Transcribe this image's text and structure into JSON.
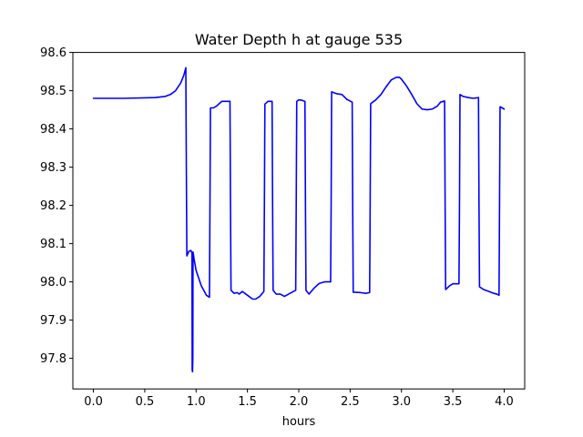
{
  "chart_data": {
    "type": "line",
    "title": "Water Depth h at gauge 535",
    "xlabel": "hours",
    "ylabel": "",
    "xlim": [
      -0.2,
      4.2
    ],
    "ylim": [
      97.72,
      98.6
    ],
    "xticks": [
      0.0,
      0.5,
      1.0,
      1.5,
      2.0,
      2.5,
      3.0,
      3.5,
      4.0
    ],
    "xtick_labels": [
      "0.0",
      "0.5",
      "1.0",
      "1.5",
      "2.0",
      "2.5",
      "3.0",
      "3.5",
      "4.0"
    ],
    "yticks": [
      97.8,
      97.9,
      98.0,
      98.1,
      98.2,
      98.3,
      98.4,
      98.5,
      98.6
    ],
    "ytick_labels": [
      "97.8",
      "97.9",
      "98.0",
      "98.1",
      "98.2",
      "98.3",
      "98.4",
      "98.5",
      "98.6"
    ],
    "grid": false,
    "series": [
      {
        "color": "#0000ff",
        "x": [
          0.0,
          0.3,
          0.6,
          0.7,
          0.75,
          0.8,
          0.85,
          0.88,
          0.9,
          0.905,
          0.91,
          0.93,
          0.95,
          0.96,
          0.962,
          0.965,
          0.968,
          0.97,
          0.975,
          0.98,
          1.0,
          1.05,
          1.1,
          1.13,
          1.135,
          1.14,
          1.17,
          1.2,
          1.25,
          1.3,
          1.33,
          1.335,
          1.34,
          1.37,
          1.4,
          1.42,
          1.45,
          1.5,
          1.55,
          1.58,
          1.62,
          1.66,
          1.665,
          1.67,
          1.7,
          1.73,
          1.74,
          1.745,
          1.75,
          1.78,
          1.82,
          1.86,
          1.9,
          1.95,
          1.97,
          1.975,
          1.98,
          2.0,
          2.03,
          2.06,
          2.065,
          2.07,
          2.1,
          2.15,
          2.2,
          2.25,
          2.3,
          2.31,
          2.315,
          2.32,
          2.37,
          2.42,
          2.47,
          2.52,
          2.525,
          2.53,
          2.6,
          2.65,
          2.69,
          2.695,
          2.7,
          2.75,
          2.8,
          2.85,
          2.9,
          2.95,
          2.98,
          3.0,
          3.05,
          3.1,
          3.15,
          3.2,
          3.25,
          3.3,
          3.35,
          3.38,
          3.42,
          3.425,
          3.43,
          3.47,
          3.5,
          3.55,
          3.56,
          3.565,
          3.57,
          3.6,
          3.65,
          3.7,
          3.75,
          3.755,
          3.76,
          3.8,
          3.85,
          3.9,
          3.93,
          3.95,
          3.955,
          3.96,
          3.98,
          4.0
        ],
        "y": [
          98.48,
          98.48,
          98.482,
          98.485,
          98.49,
          98.5,
          98.52,
          98.54,
          98.56,
          98.3,
          98.068,
          98.08,
          98.082,
          98.075,
          97.77,
          97.765,
          97.8,
          98.078,
          98.07,
          98.06,
          98.03,
          97.99,
          97.965,
          97.96,
          98.2,
          98.455,
          98.455,
          98.46,
          98.472,
          98.472,
          98.472,
          98.2,
          97.978,
          97.97,
          97.972,
          97.968,
          97.975,
          97.965,
          97.955,
          97.955,
          97.962,
          97.975,
          98.2,
          98.465,
          98.472,
          98.472,
          98.472,
          98.2,
          97.978,
          97.968,
          97.968,
          97.962,
          97.968,
          97.975,
          97.978,
          98.2,
          98.472,
          98.476,
          98.475,
          98.472,
          98.2,
          97.978,
          97.968,
          97.984,
          97.996,
          98.0,
          98.0,
          98.0,
          98.2,
          98.497,
          98.492,
          98.49,
          98.477,
          98.47,
          98.2,
          97.973,
          97.972,
          97.97,
          97.972,
          98.2,
          98.466,
          98.476,
          98.49,
          98.51,
          98.528,
          98.535,
          98.535,
          98.53,
          98.512,
          98.49,
          98.466,
          98.452,
          98.45,
          98.452,
          98.46,
          98.47,
          98.473,
          98.2,
          97.98,
          97.99,
          97.995,
          97.995,
          97.995,
          98.2,
          98.49,
          98.485,
          98.482,
          98.48,
          98.482,
          98.2,
          97.987,
          97.98,
          97.975,
          97.97,
          97.968,
          97.965,
          98.2,
          98.458,
          98.455,
          98.452
        ]
      }
    ]
  }
}
